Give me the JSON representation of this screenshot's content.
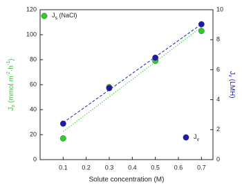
{
  "chart_data": {
    "type": "scatter",
    "xlabel": "Solute concentration (M)",
    "ylabel": [
      "J",
      "s",
      " (mmol m",
      "-2",
      "·h",
      "-1",
      ")"
    ],
    "y2label": [
      "J",
      "v",
      " (LMH)"
    ],
    "x": [
      0.1,
      0.3,
      0.5,
      0.7
    ],
    "xlim": [
      0,
      0.75
    ],
    "xticks": [
      0.1,
      0.2,
      0.3,
      0.4,
      0.5,
      0.6,
      0.7
    ],
    "ylim": [
      0,
      120
    ],
    "yticks": [
      0,
      20,
      40,
      60,
      80,
      100,
      120
    ],
    "y2lim": [
      0,
      10
    ],
    "y2ticks": [
      0,
      2,
      4,
      6,
      8,
      10
    ],
    "trendline": true,
    "series": [
      {
        "name": [
          "J",
          "s",
          " (NaCl)"
        ],
        "color": "#2ecc2e",
        "values": [
          17,
          58,
          79,
          103
        ]
      },
      {
        "name": [
          "J",
          "v"
        ],
        "color": "#1c1ca8",
        "axis": "y2",
        "values": [
          2.4,
          4.77,
          6.8,
          9.03
        ]
      }
    ]
  }
}
